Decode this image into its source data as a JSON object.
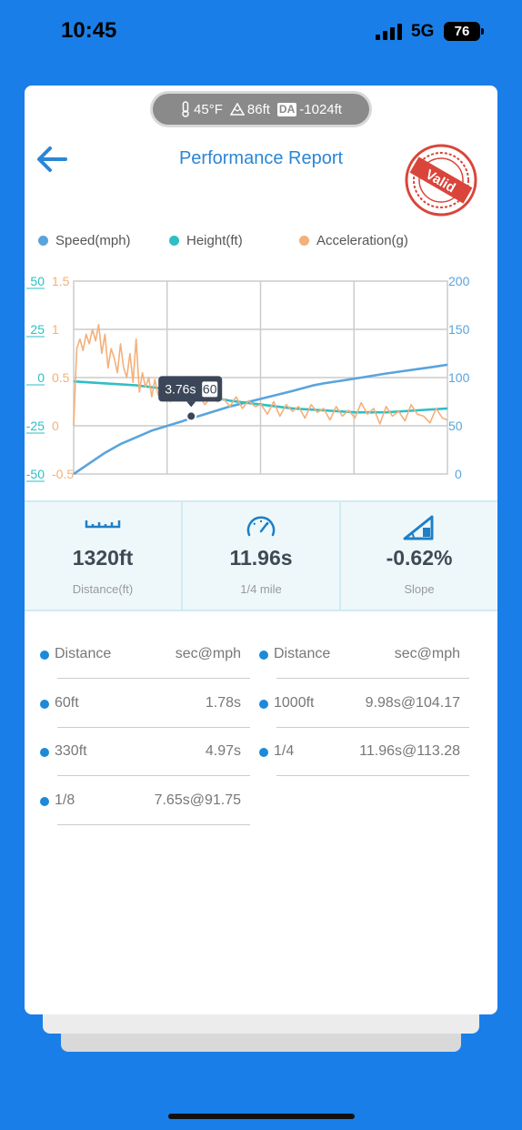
{
  "status_bar": {
    "time": "10:45",
    "network": "5G",
    "battery": "76"
  },
  "conditions": {
    "temperature": "45°F",
    "altitude": "86ft",
    "da_badge": "DA",
    "density_altitude": "-1024ft"
  },
  "header": {
    "title": "Performance Report",
    "stamp_text": "Valid"
  },
  "legend": [
    {
      "label": "Speed(mph)",
      "color": "#5aa4dc"
    },
    {
      "label": "Height(ft)",
      "color": "#2ebfc4"
    },
    {
      "label": "Acceleration(g)",
      "color": "#f3b07a"
    }
  ],
  "chart_data": {
    "type": "line",
    "x_range": [
      0,
      11.96
    ],
    "left_axis_height": {
      "ticks": [
        "50",
        "25",
        "0",
        "-25",
        "-50"
      ],
      "range": [
        -50,
        50
      ],
      "color": "#2ebfc4"
    },
    "left_axis_acceleration": {
      "ticks": [
        "1.5",
        "1",
        "0.5",
        "0",
        "-0.5"
      ],
      "range": [
        -0.5,
        1.5
      ],
      "color": "#f3b07a"
    },
    "right_axis_speed": {
      "ticks": [
        "200",
        "150",
        "100",
        "50",
        "0"
      ],
      "range": [
        0,
        200
      ],
      "color": "#5aa4dc"
    },
    "grid": true,
    "tooltip": {
      "time": "3.76s",
      "value": "60"
    },
    "series": [
      {
        "name": "Speed(mph)",
        "axis": "right",
        "x": [
          0,
          0.5,
          1,
          1.5,
          2,
          2.5,
          3,
          3.5,
          3.76,
          4,
          5,
          6,
          7,
          7.65,
          8,
          9,
          9.98,
          10.5,
          11,
          11.5,
          11.96
        ],
        "y": [
          0,
          11,
          22,
          31,
          38,
          45,
          50,
          55,
          58,
          60,
          70,
          78,
          86,
          91.75,
          94,
          99,
          104.17,
          106.5,
          108.8,
          111,
          113.28
        ]
      },
      {
        "name": "Height(ft)",
        "axis": "left",
        "x": [
          0,
          2,
          3,
          4,
          5,
          6,
          7,
          8,
          9,
          10,
          11,
          11.96
        ],
        "y": [
          -2,
          -4,
          -6,
          -9,
          -12,
          -14,
          -16,
          -17,
          -18,
          -18,
          -17,
          -16
        ]
      },
      {
        "name": "Acceleration(g)",
        "axis": "left2",
        "x": [
          0,
          0.1,
          0.2,
          0.3,
          0.4,
          0.5,
          0.6,
          0.7,
          0.8,
          0.9,
          1.0,
          1.1,
          1.2,
          1.3,
          1.4,
          1.5,
          1.6,
          1.7,
          1.8,
          1.9,
          2.0,
          2.1,
          2.2,
          2.3,
          2.4,
          2.5,
          2.6,
          2.7,
          2.8,
          2.9,
          3.0,
          3.1,
          3.2,
          3.4,
          3.6,
          3.8,
          4.0,
          4.2,
          4.4,
          4.6,
          4.8,
          5.0,
          5.2,
          5.4,
          5.6,
          5.8,
          6.0,
          6.2,
          6.4,
          6.6,
          6.8,
          7.0,
          7.2,
          7.4,
          7.6,
          7.8,
          8.0,
          8.2,
          8.4,
          8.6,
          8.8,
          9.0,
          9.2,
          9.4,
          9.6,
          9.8,
          10.0,
          10.2,
          10.4,
          10.6,
          10.8,
          11.0,
          11.2,
          11.4,
          11.6,
          11.8,
          11.96
        ],
        "y": [
          0.0,
          0.8,
          0.9,
          0.78,
          0.95,
          0.85,
          1.0,
          0.88,
          1.05,
          0.75,
          0.95,
          0.6,
          0.8,
          0.7,
          0.55,
          0.85,
          0.6,
          0.5,
          0.75,
          0.45,
          0.9,
          0.35,
          0.55,
          0.4,
          0.5,
          0.3,
          0.48,
          0.32,
          0.42,
          0.28,
          0.45,
          0.25,
          0.38,
          0.3,
          0.35,
          0.28,
          0.32,
          0.22,
          0.3,
          0.25,
          0.28,
          0.2,
          0.3,
          0.18,
          0.26,
          0.2,
          0.22,
          0.12,
          0.25,
          0.1,
          0.22,
          0.15,
          0.2,
          0.08,
          0.22,
          0.14,
          0.18,
          0.06,
          0.2,
          0.1,
          0.16,
          0.08,
          0.24,
          0.12,
          0.18,
          0.02,
          0.2,
          0.1,
          0.15,
          0.05,
          0.22,
          0.12,
          0.1,
          0.03,
          0.18,
          0.08,
          0.06
        ]
      }
    ]
  },
  "stats": [
    {
      "value": "1320ft",
      "label": "Distance(ft)",
      "icon": "ruler-icon"
    },
    {
      "value": "11.96s",
      "label": "1/4 mile",
      "icon": "speedometer-icon"
    },
    {
      "value": "-0.62%",
      "label": "Slope",
      "icon": "slope-icon"
    }
  ],
  "splits": {
    "left": [
      {
        "name": "Distance",
        "value": "sec@mph"
      },
      {
        "name": "60ft",
        "value": "1.78s"
      },
      {
        "name": "330ft",
        "value": "4.97s"
      },
      {
        "name": "1/8",
        "value": "7.65s@91.75"
      }
    ],
    "right": [
      {
        "name": "Distance",
        "value": "sec@mph"
      },
      {
        "name": "1000ft",
        "value": "9.98s@104.17"
      },
      {
        "name": "1/4",
        "value": "11.96s@113.28"
      }
    ]
  }
}
